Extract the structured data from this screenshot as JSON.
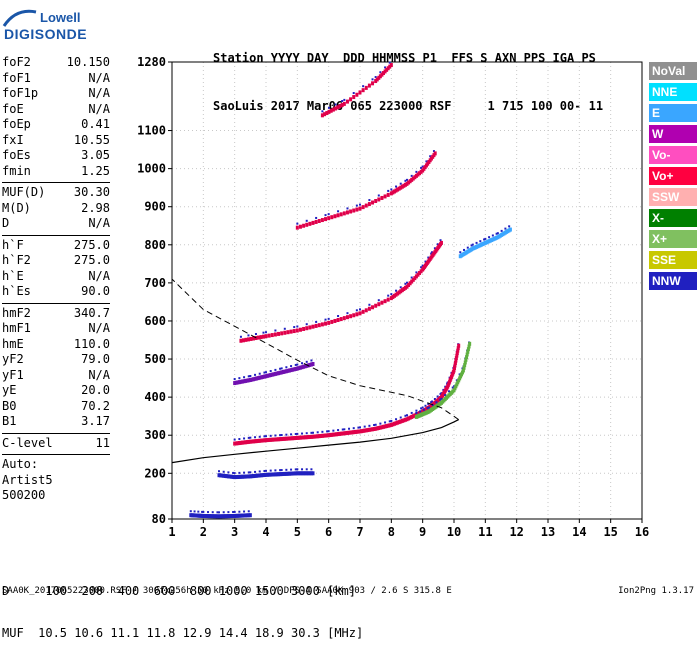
{
  "logo": {
    "line1": "Lowell",
    "line2": "DIGISONDE"
  },
  "header": {
    "line1": "Station YYYY DAY  DDD HHMMSS P1  FFS S AXN PPS IGA PS",
    "line2": "SaoLuis 2017 Mar06 065 223000 RSF     1 715 100 00- 11"
  },
  "params": [
    [
      [
        "foF2",
        "10.150"
      ],
      [
        "foF1",
        "N/A"
      ],
      [
        "foF1p",
        "N/A"
      ],
      [
        "foE",
        "N/A"
      ],
      [
        "foEp",
        "0.41"
      ],
      [
        "fxI",
        "10.55"
      ],
      [
        "foEs",
        "3.05"
      ],
      [
        "fmin",
        "1.25"
      ]
    ],
    [
      [
        "MUF(D)",
        "30.30"
      ],
      [
        "M(D)",
        "2.98"
      ],
      [
        "D",
        "N/A"
      ]
    ],
    [
      [
        "h`F",
        "275.0"
      ],
      [
        "h`F2",
        "275.0"
      ],
      [
        "h`E",
        "N/A"
      ],
      [
        "h`Es",
        "90.0"
      ]
    ],
    [
      [
        "hmF2",
        "340.7"
      ],
      [
        "hmF1",
        "N/A"
      ],
      [
        "hmE",
        "110.0"
      ],
      [
        "yF2",
        "79.0"
      ],
      [
        "yF1",
        "N/A"
      ],
      [
        "yE",
        "20.0"
      ],
      [
        "B0",
        "70.2"
      ],
      [
        "B1",
        "3.17"
      ]
    ],
    [
      [
        "C-level",
        "11"
      ]
    ]
  ],
  "auto": {
    "line1": "Auto:",
    "line2": "Artist5",
    "line3": "500200"
  },
  "legend": [
    {
      "label": "NoVal",
      "color": "#909090"
    },
    {
      "label": "NNE",
      "color": "#00e0ff"
    },
    {
      "label": "E",
      "color": "#3aa6ff"
    },
    {
      "label": "W",
      "color": "#b000b0"
    },
    {
      "label": "Vo-",
      "color": "#ff4ec0"
    },
    {
      "label": "Vo+",
      "color": "#ff0040"
    },
    {
      "label": "SSW",
      "color": "#ffb0b0"
    },
    {
      "label": "X-",
      "color": "#008000"
    },
    {
      "label": "X+",
      "color": "#80c060"
    },
    {
      "label": "SSE",
      "color": "#c8c800"
    },
    {
      "label": "NNW",
      "color": "#2020c0"
    }
  ],
  "footer": {
    "d_line": "D     100  200  400  600  800 1000 1500 3000 [km]",
    "muf_line": "MUF  10.5 10.6 11.1 11.8 12.9 14.4 18.9 30.3 [MHz]",
    "file_line": "SAA0K_2017065223000.RSF / 300fx256h 50 kHz 5.0 km / DPS-4 SAA0K 903 / 2.6 S 315.8 E",
    "version": "Ion2Png 1.3.17"
  },
  "chart_data": {
    "type": "scatter",
    "xlim": [
      1,
      16
    ],
    "ylim": [
      80,
      1280
    ],
    "x_ticks": [
      1,
      2,
      3,
      4,
      5,
      6,
      7,
      8,
      9,
      10,
      11,
      12,
      13,
      14,
      15,
      16
    ],
    "y_ticks": [
      80,
      200,
      300,
      400,
      500,
      600,
      700,
      800,
      900,
      1000,
      1100,
      1280
    ],
    "grid": true,
    "legend_position": "right",
    "traces": [
      {
        "name": "F2 first hop",
        "color": "#e0004a",
        "points": [
          [
            3.0,
            278
          ],
          [
            3.5,
            283
          ],
          [
            4.0,
            287
          ],
          [
            4.5,
            290
          ],
          [
            5.0,
            293
          ],
          [
            5.5,
            296
          ],
          [
            6.0,
            300
          ],
          [
            6.5,
            305
          ],
          [
            7.0,
            310
          ],
          [
            7.5,
            317
          ],
          [
            8.0,
            327
          ],
          [
            8.5,
            342
          ],
          [
            9.0,
            362
          ],
          [
            9.3,
            378
          ],
          [
            9.6,
            400
          ],
          [
            9.8,
            428
          ],
          [
            10.0,
            470
          ],
          [
            10.15,
            535
          ]
        ]
      },
      {
        "name": "F2 X trace",
        "color": "#60b040",
        "points": [
          [
            8.8,
            348
          ],
          [
            9.2,
            362
          ],
          [
            9.6,
            385
          ],
          [
            10.0,
            418
          ],
          [
            10.3,
            470
          ],
          [
            10.5,
            540
          ]
        ]
      },
      {
        "name": "F2 second hop",
        "color": "#e0004a",
        "points": [
          [
            3.2,
            548
          ],
          [
            4.0,
            560
          ],
          [
            5.0,
            575
          ],
          [
            6.0,
            595
          ],
          [
            7.0,
            620
          ],
          [
            8.0,
            660
          ],
          [
            8.5,
            690
          ],
          [
            9.0,
            735
          ],
          [
            9.3,
            770
          ],
          [
            9.6,
            805
          ]
        ]
      },
      {
        "name": "F2 third hop",
        "color": "#e0004a",
        "points": [
          [
            5.0,
            845
          ],
          [
            6.0,
            870
          ],
          [
            7.0,
            895
          ],
          [
            8.0,
            935
          ],
          [
            8.5,
            960
          ],
          [
            9.0,
            995
          ],
          [
            9.4,
            1040
          ]
        ]
      },
      {
        "name": "F2 fourth hop",
        "color": "#e0004a",
        "points": [
          [
            5.8,
            1140
          ],
          [
            6.5,
            1170
          ],
          [
            7.5,
            1230
          ],
          [
            8.0,
            1272
          ]
        ]
      },
      {
        "name": "Es first hop",
        "color": "#2020c0",
        "points": [
          [
            2.5,
            195
          ],
          [
            3.0,
            190
          ],
          [
            3.5,
            192
          ],
          [
            4.0,
            196
          ],
          [
            4.5,
            198
          ],
          [
            5.0,
            200
          ],
          [
            5.5,
            200
          ]
        ]
      },
      {
        "name": "Es second hop",
        "color": "#7010b0",
        "points": [
          [
            3.0,
            437
          ],
          [
            3.5,
            445
          ],
          [
            4.0,
            455
          ],
          [
            4.5,
            465
          ],
          [
            5.0,
            475
          ],
          [
            5.5,
            487
          ]
        ]
      },
      {
        "name": "E layer",
        "color": "#2020c0",
        "points": [
          [
            1.6,
            90
          ],
          [
            2.0,
            88
          ],
          [
            2.5,
            87
          ],
          [
            3.0,
            88
          ],
          [
            3.5,
            90
          ]
        ]
      },
      {
        "name": "Oblique echo",
        "color": "#3aa6ff",
        "points": [
          [
            10.2,
            770
          ],
          [
            10.6,
            790
          ],
          [
            11.0,
            805
          ],
          [
            11.4,
            820
          ],
          [
            11.8,
            840
          ]
        ]
      }
    ],
    "profile": {
      "name": "Electron density profile",
      "style": "solid",
      "points": [
        [
          1.0,
          228
        ],
        [
          2.0,
          241
        ],
        [
          3.0,
          250
        ],
        [
          4.0,
          258
        ],
        [
          5.0,
          266
        ],
        [
          6.0,
          274
        ],
        [
          7.0,
          282
        ],
        [
          8.0,
          292
        ],
        [
          9.0,
          307
        ],
        [
          9.6,
          320
        ],
        [
          10.0,
          335
        ],
        [
          10.15,
          341
        ]
      ]
    },
    "profile_topside": {
      "name": "Topside extrapolation",
      "style": "dashed",
      "points": [
        [
          10.15,
          341
        ],
        [
          9.6,
          372
        ],
        [
          8.5,
          404
        ],
        [
          7.0,
          430
        ],
        [
          6.0,
          456
        ],
        [
          5.0,
          497
        ],
        [
          4.0,
          542
        ],
        [
          3.0,
          586
        ],
        [
          2.0,
          630
        ],
        [
          1.0,
          710
        ]
      ]
    }
  }
}
